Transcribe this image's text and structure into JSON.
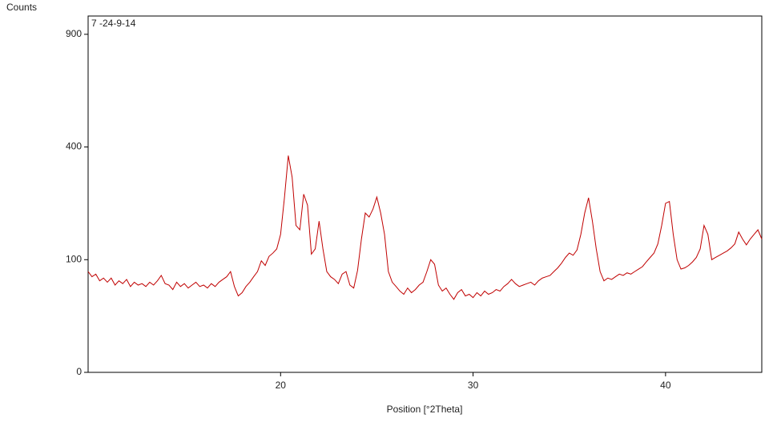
{
  "chart_data": {
    "type": "line",
    "ylabel": "Counts",
    "annotation": "7 -24-9-14",
    "xlabel": "Position [°2Theta]",
    "yscale": "sqrt",
    "xlim": [
      10,
      45
    ],
    "ylim": [
      0,
      1000
    ],
    "xticks": [
      20,
      30,
      40
    ],
    "yticks": [
      0,
      100,
      400,
      900
    ],
    "x": [
      10,
      10.2,
      10.4,
      10.6,
      10.8,
      11,
      11.2,
      11.4,
      11.6,
      11.8,
      12,
      12.2,
      12.4,
      12.6,
      12.8,
      13,
      13.2,
      13.4,
      13.6,
      13.8,
      14,
      14.2,
      14.4,
      14.6,
      14.8,
      15,
      15.2,
      15.4,
      15.6,
      15.8,
      16,
      16.2,
      16.4,
      16.6,
      16.8,
      17,
      17.2,
      17.4,
      17.6,
      17.8,
      18,
      18.2,
      18.4,
      18.6,
      18.8,
      19,
      19.2,
      19.4,
      19.6,
      19.8,
      20,
      20.2,
      20.4,
      20.6,
      20.8,
      21,
      21.2,
      21.4,
      21.6,
      21.8,
      22,
      22.2,
      22.4,
      22.6,
      22.8,
      23,
      23.2,
      23.4,
      23.6,
      23.8,
      24,
      24.2,
      24.4,
      24.6,
      24.8,
      25,
      25.2,
      25.4,
      25.6,
      25.8,
      26,
      26.2,
      26.4,
      26.6,
      26.8,
      27,
      27.2,
      27.4,
      27.6,
      27.8,
      28,
      28.2,
      28.4,
      28.6,
      28.8,
      29,
      29.2,
      29.4,
      29.6,
      29.8,
      30,
      30.2,
      30.4,
      30.6,
      30.8,
      31,
      31.2,
      31.4,
      31.6,
      31.8,
      32,
      32.2,
      32.4,
      32.6,
      32.8,
      33,
      33.2,
      33.4,
      33.6,
      33.8,
      34,
      34.2,
      34.4,
      34.6,
      34.8,
      35,
      35.2,
      35.4,
      35.6,
      35.8,
      36,
      36.2,
      36.4,
      36.6,
      36.8,
      37,
      37.2,
      37.4,
      37.6,
      37.8,
      38,
      38.2,
      38.4,
      38.6,
      38.8,
      39,
      39.2,
      39.4,
      39.6,
      39.8,
      40,
      40.2,
      40.4,
      40.6,
      40.8,
      41,
      41.2,
      41.4,
      41.6,
      41.8,
      42,
      42.2,
      42.4,
      42.6,
      42.8,
      43,
      43.2,
      43.4,
      43.6,
      43.8,
      44,
      44.2,
      44.4,
      44.6,
      44.8,
      45
    ],
    "series": [
      {
        "color": "#c00000",
        "values": [
          80,
          72,
          76,
          66,
          70,
          64,
          70,
          60,
          66,
          62,
          68,
          58,
          64,
          60,
          62,
          58,
          64,
          60,
          66,
          74,
          62,
          60,
          54,
          64,
          58,
          62,
          56,
          60,
          64,
          58,
          60,
          56,
          62,
          58,
          64,
          68,
          72,
          80,
          58,
          46,
          50,
          58,
          64,
          72,
          80,
          98,
          90,
          106,
          112,
          120,
          150,
          240,
          370,
          300,
          170,
          160,
          250,
          220,
          110,
          120,
          180,
          120,
          80,
          72,
          68,
          62,
          76,
          80,
          60,
          56,
          82,
          140,
          200,
          190,
          210,
          242,
          200,
          150,
          80,
          64,
          58,
          52,
          48,
          56,
          50,
          54,
          60,
          64,
          80,
          100,
          92,
          60,
          52,
          56,
          48,
          42,
          50,
          54,
          46,
          48,
          44,
          50,
          46,
          52,
          48,
          50,
          54,
          52,
          58,
          62,
          68,
          62,
          58,
          60,
          62,
          64,
          60,
          66,
          70,
          72,
          74,
          80,
          86,
          94,
          104,
          112,
          108,
          118,
          150,
          200,
          240,
          180,
          120,
          80,
          66,
          70,
          68,
          72,
          76,
          74,
          78,
          76,
          80,
          84,
          88,
          96,
          104,
          112,
          130,
          170,
          225,
          230,
          150,
          100,
          84,
          86,
          90,
          96,
          104,
          120,
          170,
          150,
          100,
          104,
          108,
          112,
          116,
          122,
          130,
          155,
          140,
          128,
          140,
          150,
          160,
          140
        ]
      }
    ]
  }
}
